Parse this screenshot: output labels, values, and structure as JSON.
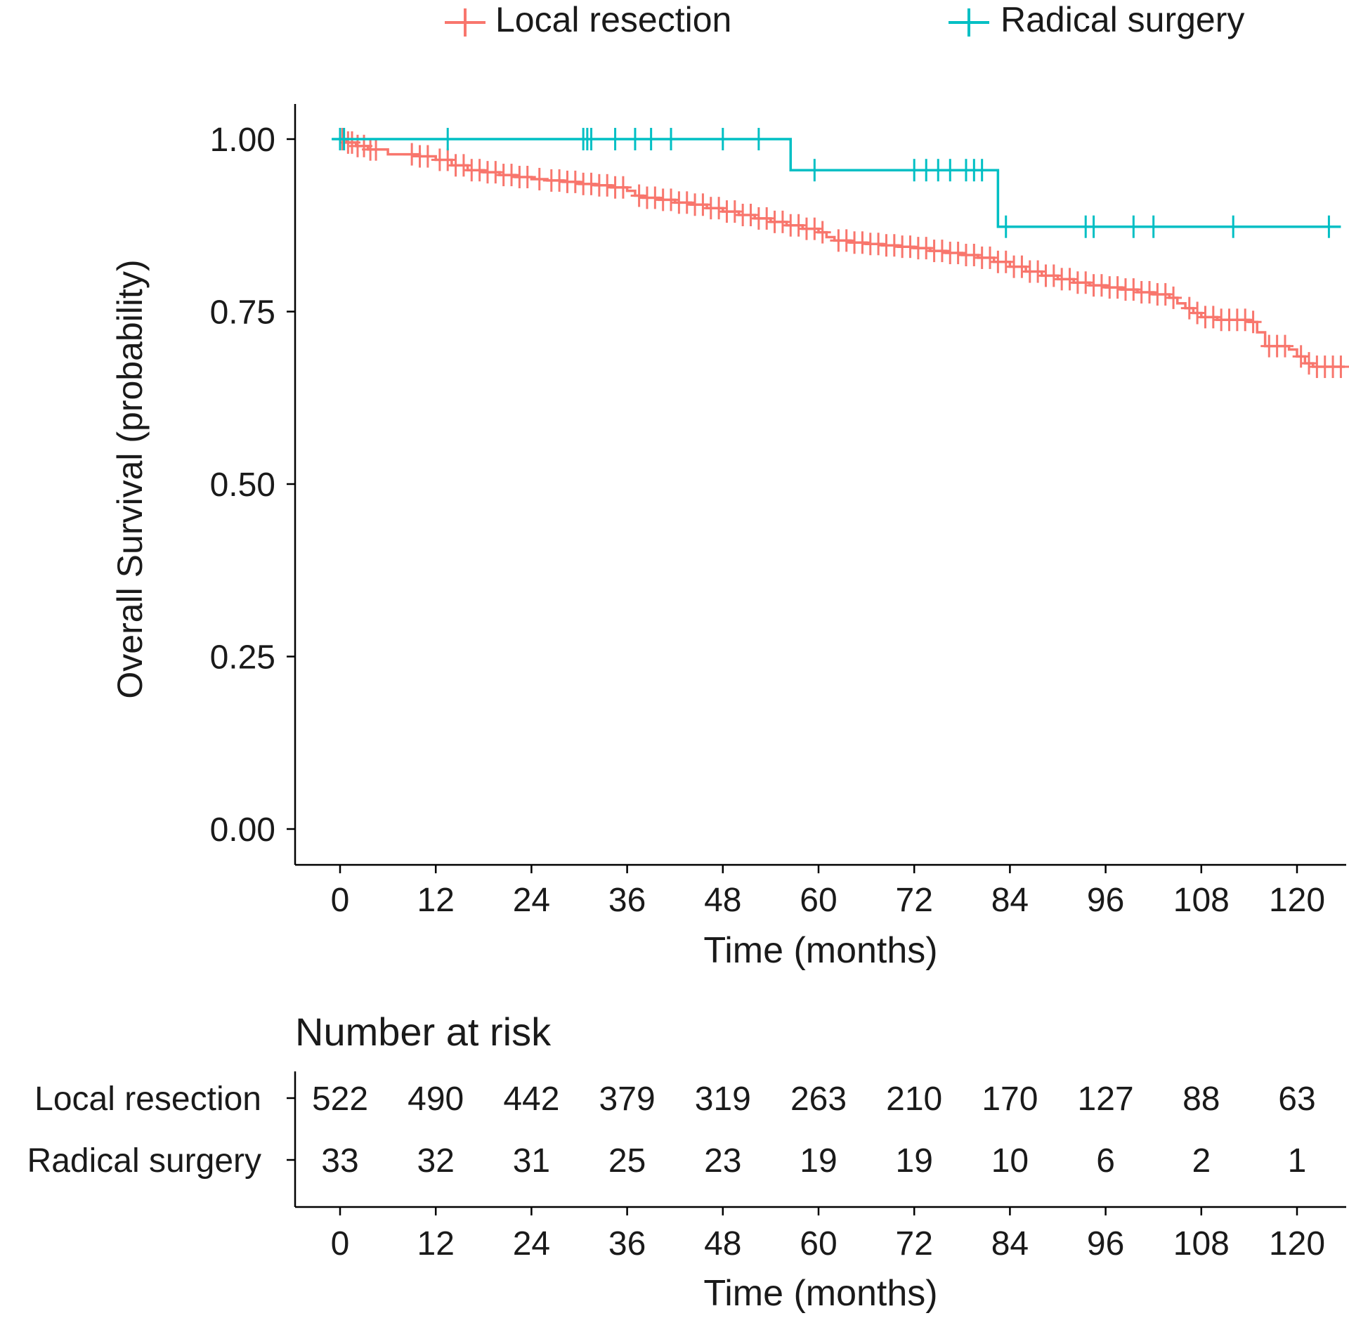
{
  "colors": {
    "local": "#F8766D",
    "radical": "#00BFC4",
    "radical_label": "#23B1D6",
    "axis": "#000000",
    "text": "#1a1a1a"
  },
  "legend": {
    "local_label": "Local resection",
    "radical_label": "Radical surgery"
  },
  "chart_data": {
    "type": "line",
    "subtype": "kaplan-meier step curves",
    "title": "",
    "xlabel": "Time (months)",
    "ylabel": "Overall Survival (probability)",
    "xlim": [
      -4.5,
      126
    ],
    "ylim": [
      -0.05,
      1.05
    ],
    "x_ticks": [
      0,
      12,
      24,
      36,
      48,
      60,
      72,
      84,
      96,
      108,
      120
    ],
    "y_ticks": [
      0,
      0.25,
      0.5,
      0.75,
      1.0
    ],
    "y_tick_labels": [
      "0.00",
      "0.25",
      "0.50",
      "0.75",
      "1.00"
    ],
    "legend_position": "top",
    "series": [
      {
        "name": "Local resection",
        "color": "#F8766D",
        "steps": [
          [
            0,
            1.0
          ],
          [
            0.8,
            0.995
          ],
          [
            2,
            0.99
          ],
          [
            3.5,
            0.985
          ],
          [
            6,
            0.978
          ],
          [
            10,
            0.975
          ],
          [
            12,
            0.97
          ],
          [
            14,
            0.962
          ],
          [
            16,
            0.955
          ],
          [
            18,
            0.952
          ],
          [
            20,
            0.948
          ],
          [
            22,
            0.945
          ],
          [
            24,
            0.942
          ],
          [
            26,
            0.94
          ],
          [
            28,
            0.938
          ],
          [
            30,
            0.935
          ],
          [
            32,
            0.933
          ],
          [
            34,
            0.93
          ],
          [
            36,
            0.925
          ],
          [
            37,
            0.918
          ],
          [
            38,
            0.915
          ],
          [
            40,
            0.912
          ],
          [
            42,
            0.908
          ],
          [
            44,
            0.905
          ],
          [
            46,
            0.9
          ],
          [
            48,
            0.895
          ],
          [
            50,
            0.89
          ],
          [
            52,
            0.885
          ],
          [
            54,
            0.88
          ],
          [
            56,
            0.875
          ],
          [
            58,
            0.87
          ],
          [
            60,
            0.865
          ],
          [
            61,
            0.858
          ],
          [
            62,
            0.853
          ],
          [
            64,
            0.85
          ],
          [
            66,
            0.848
          ],
          [
            68,
            0.846
          ],
          [
            70,
            0.844
          ],
          [
            72,
            0.842
          ],
          [
            74,
            0.838
          ],
          [
            76,
            0.835
          ],
          [
            78,
            0.832
          ],
          [
            80,
            0.828
          ],
          [
            82,
            0.822
          ],
          [
            84,
            0.815
          ],
          [
            86,
            0.808
          ],
          [
            88,
            0.802
          ],
          [
            90,
            0.797
          ],
          [
            92,
            0.792
          ],
          [
            94,
            0.788
          ],
          [
            96,
            0.785
          ],
          [
            98,
            0.782
          ],
          [
            100,
            0.778
          ],
          [
            102,
            0.775
          ],
          [
            104,
            0.77
          ],
          [
            105,
            0.762
          ],
          [
            106,
            0.755
          ],
          [
            107,
            0.748
          ],
          [
            108,
            0.742
          ],
          [
            110,
            0.738
          ],
          [
            114,
            0.735
          ],
          [
            115,
            0.72
          ],
          [
            116,
            0.7
          ],
          [
            119,
            0.695
          ],
          [
            120,
            0.685
          ],
          [
            121,
            0.675
          ],
          [
            122,
            0.67
          ],
          [
            126,
            0.67
          ]
        ],
        "censor_times": [
          0.3,
          1,
          1.5,
          2.2,
          3,
          3.8,
          4.5,
          9,
          10,
          11,
          12.5,
          13.5,
          14.5,
          15.5,
          16.5,
          17.5,
          18.5,
          19.5,
          20.5,
          21.5,
          22.5,
          23.5,
          25,
          26.5,
          27.5,
          28.5,
          29.5,
          30.5,
          31.5,
          32.5,
          33.5,
          34.5,
          35.5,
          37.5,
          38.5,
          39.5,
          40.5,
          41.5,
          42.5,
          43.5,
          44.5,
          45.5,
          46.5,
          47.5,
          48.5,
          49.5,
          50.5,
          51.5,
          52.5,
          53.5,
          54.5,
          55.5,
          56.5,
          57.5,
          58.5,
          59.5,
          60.5,
          62.5,
          63.5,
          64.5,
          65.5,
          66.5,
          67.5,
          68.5,
          69.5,
          70.5,
          71.5,
          72.5,
          73.5,
          74.5,
          75.5,
          76.5,
          77.5,
          78.5,
          79.5,
          80.5,
          81.5,
          82.5,
          83.5,
          84.5,
          85.5,
          86.5,
          87.5,
          88.5,
          89.5,
          90.5,
          91.5,
          92.5,
          93.5,
          94.5,
          95.5,
          96.5,
          97.5,
          98.5,
          99.5,
          100.5,
          101.5,
          102.5,
          103.5,
          104.5,
          106.5,
          107.5,
          108.5,
          109.5,
          110.5,
          111.5,
          112.5,
          113.5,
          114.5,
          116.5,
          117.5,
          118.5,
          120.5,
          121.5,
          122.5,
          123.5,
          124.5,
          125.5
        ]
      },
      {
        "name": "Radical surgery",
        "color": "#00BFC4",
        "steps": [
          [
            -1,
            1.0
          ],
          [
            56.5,
            0.955
          ],
          [
            82.5,
            0.873
          ],
          [
            125.5,
            0.873
          ]
        ],
        "censor_times": [
          0,
          0.5,
          13.5,
          30.5,
          31,
          31.5,
          34.5,
          37,
          39,
          41.5,
          48,
          52.5,
          59.5,
          72,
          73.5,
          75,
          76.5,
          78.5,
          79.5,
          80.5,
          83.5,
          93.5,
          94.5,
          99.5,
          102,
          112,
          124
        ]
      }
    ]
  },
  "risk_table": {
    "title": "Number at risk",
    "xlabel": "Time (months)",
    "rows": [
      {
        "label": "Local resection",
        "counts": [
          "522",
          "490",
          "442",
          "379",
          "319",
          "263",
          "210",
          "170",
          "127",
          "88",
          "63"
        ]
      },
      {
        "label": "Radical surgery",
        "counts": [
          "33",
          "32",
          "31",
          "25",
          "23",
          "19",
          "19",
          "10",
          "6",
          "2",
          "1"
        ]
      }
    ]
  }
}
